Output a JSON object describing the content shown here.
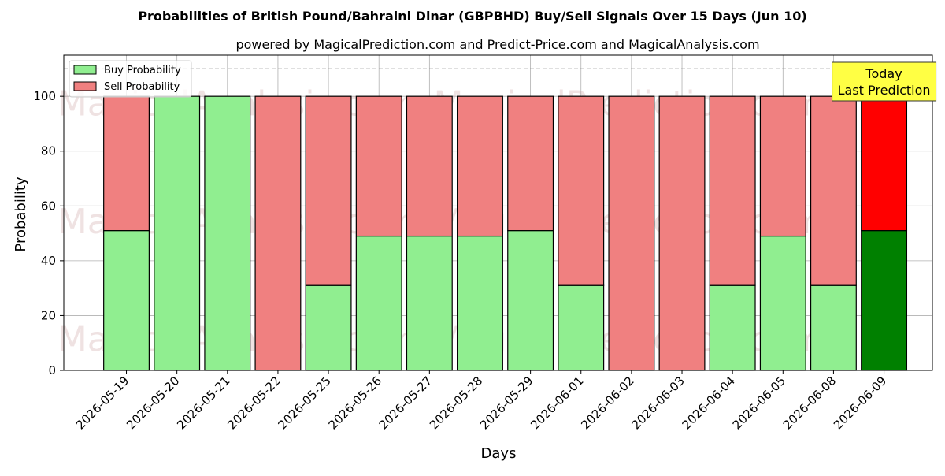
{
  "chart_data": {
    "type": "bar",
    "stacked": true,
    "title": "Probabilities of British Pound/Bahraini Dinar (GBPBHD) Buy/Sell Signals Over 15 Days (Jun 10)",
    "subtitle": "powered by MagicalPrediction.com and Predict-Price.com and MagicalAnalysis.com",
    "xlabel": "Days",
    "ylabel": "Probability",
    "ylim": [
      0,
      115
    ],
    "yticks": [
      0,
      20,
      40,
      60,
      80,
      100
    ],
    "grid": true,
    "legend_position": "top-left",
    "reference_line": 110,
    "categories": [
      "2026-05-19",
      "2026-05-20",
      "2026-05-21",
      "2026-05-22",
      "2026-05-25",
      "2026-05-26",
      "2026-05-27",
      "2026-05-28",
      "2026-05-29",
      "2026-06-01",
      "2026-06-02",
      "2026-06-03",
      "2026-06-04",
      "2026-06-05",
      "2026-06-08",
      "2026-06-09"
    ],
    "series": [
      {
        "name": "Buy Probability",
        "color": "#90ee90",
        "highlight_color": "#008000",
        "values": [
          51,
          100,
          100,
          0,
          31,
          49,
          49,
          49,
          51,
          31,
          0,
          0,
          31,
          49,
          31,
          51
        ]
      },
      {
        "name": "Sell Probability",
        "color": "#f08080",
        "highlight_color": "#ff0000",
        "values": [
          49,
          0,
          0,
          100,
          69,
          51,
          51,
          51,
          49,
          69,
          100,
          100,
          69,
          51,
          69,
          49
        ]
      }
    ],
    "highlight_index": 15,
    "annotation": {
      "line1": "Today",
      "line2": "Last Prediction",
      "bg": "#ffff44"
    },
    "watermarks": [
      "MagicalAnalysis.com",
      "MagicalPrediction.com"
    ]
  }
}
